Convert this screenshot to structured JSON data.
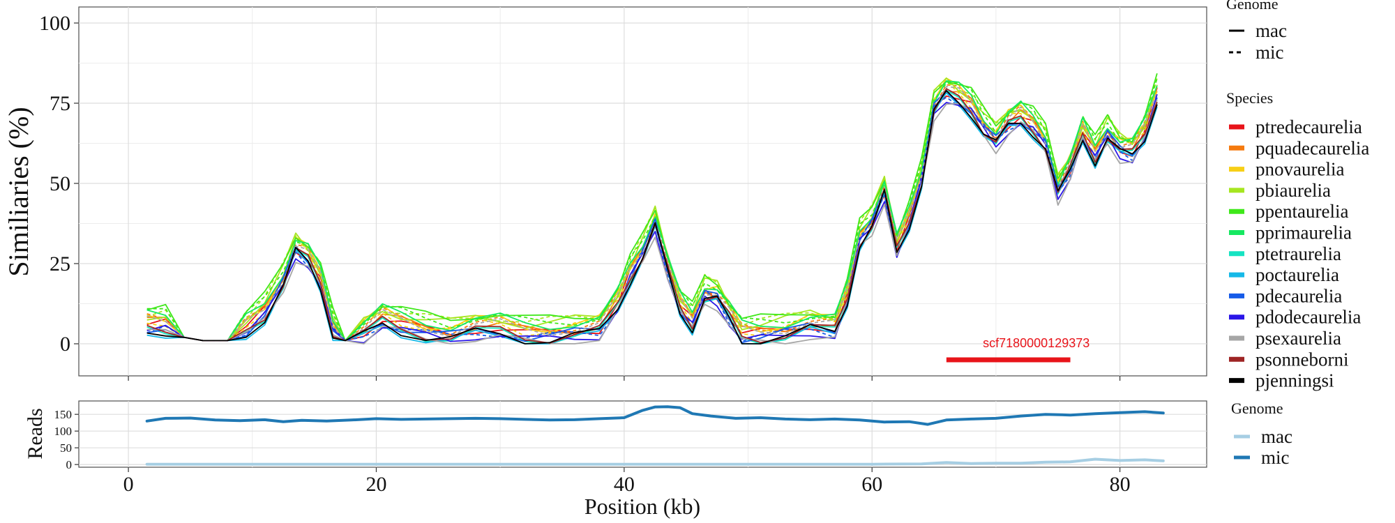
{
  "chart_data": [
    {
      "type": "line",
      "ylabel": "Similiaries (%)",
      "xlim": [
        -4,
        87
      ],
      "ylim": [
        -10,
        105
      ],
      "x_ticks": [
        0,
        20,
        40,
        60,
        80
      ],
      "y_ticks": [
        0,
        25,
        50,
        75,
        100
      ],
      "x_tick_labels": [
        "0",
        "20",
        "40",
        "60",
        "80"
      ],
      "y_tick_labels": [
        "0",
        "25",
        "50",
        "75",
        "100"
      ],
      "grid": true,
      "annotations": [
        {
          "text": "scf7180000129373",
          "x_start": 66,
          "x_end": 76,
          "y": -5,
          "color": "#e8141a"
        }
      ],
      "legends": {
        "placement": "right",
        "genome": {
          "title": "Genome",
          "entries": [
            {
              "label": "mac",
              "linestyle": "solid"
            },
            {
              "label": "mic",
              "linestyle": "dashed"
            }
          ]
        },
        "species": {
          "title": "Species",
          "entries": [
            {
              "label": "ptredecaurelia",
              "color": "#e8141a"
            },
            {
              "label": "pquadecaurelia",
              "color": "#f57a0f"
            },
            {
              "label": "pnovaurelia",
              "color": "#f7cf16"
            },
            {
              "label": "pbiaurelia",
              "color": "#a6e620"
            },
            {
              "label": "ppentaurelia",
              "color": "#3fe81a"
            },
            {
              "label": "pprimaurelia",
              "color": "#16e861"
            },
            {
              "label": "ptetraurelia",
              "color": "#16e3c2"
            },
            {
              "label": "poctaurelia",
              "color": "#16b9e8"
            },
            {
              "label": "pdecaurelia",
              "color": "#165be8"
            },
            {
              "label": "pdodecaurelia",
              "color": "#2a16e8"
            },
            {
              "label": "psexaurelia",
              "color": "#a6a6a6"
            },
            {
              "label": "psonneborni",
              "color": "#9e2424"
            },
            {
              "label": "pjenningsi",
              "color": "#000000"
            }
          ]
        }
      },
      "profile": {
        "x": [
          1.5,
          3,
          4.5,
          6,
          8,
          9.5,
          11,
          12.5,
          13.5,
          14.5,
          15.5,
          16.5,
          17.5,
          19,
          20.5,
          22,
          24,
          26,
          28,
          30,
          32,
          34,
          36,
          38,
          39.5,
          40.5,
          41.5,
          42.5,
          43.5,
          44.5,
          45.5,
          46.5,
          47.5,
          48.5,
          49.5,
          51,
          53,
          55,
          57,
          58,
          59,
          60,
          61,
          62,
          63,
          64,
          65,
          66,
          67,
          68,
          69,
          70,
          71,
          72,
          73,
          74,
          75,
          76,
          77,
          78,
          79,
          80,
          81,
          82,
          83
        ],
        "y": [
          6,
          6,
          2,
          1,
          1,
          5,
          10,
          20,
          30,
          27,
          20,
          5,
          1,
          4,
          8,
          6,
          4,
          3,
          5,
          5,
          3,
          3,
          4,
          5,
          13,
          22,
          29,
          38,
          24,
          12,
          7,
          16,
          15,
          9,
          3,
          3,
          4,
          6,
          5,
          15,
          33,
          38,
          48,
          30,
          39,
          52,
          74,
          79,
          77,
          74,
          68,
          64,
          69,
          71,
          68,
          63,
          48,
          55,
          66,
          59,
          66,
          61,
          60,
          66,
          78
        ]
      },
      "series": [
        {
          "name": "ptredecaurelia",
          "genome": "mac",
          "color": "#e8141a",
          "offset": 0
        },
        {
          "name": "pquadecaurelia",
          "genome": "mac",
          "color": "#f57a0f",
          "offset": 0.8
        },
        {
          "name": "pquadecaurelia",
          "genome": "mic",
          "color": "#f57a0f",
          "offset": 1.6
        },
        {
          "name": "pnovaurelia",
          "genome": "mac",
          "color": "#f7cf16",
          "offset": 2.3
        },
        {
          "name": "pnovaurelia",
          "genome": "mic",
          "color": "#f7cf16",
          "offset": 1.2
        },
        {
          "name": "pbiaurelia",
          "genome": "mac",
          "color": "#a6e620",
          "offset": 3.2
        },
        {
          "name": "pbiaurelia",
          "genome": "mic",
          "color": "#a6e620",
          "offset": 3.8
        },
        {
          "name": "ppentaurelia",
          "genome": "mac",
          "color": "#3fe81a",
          "offset": 4.5
        },
        {
          "name": "ppentaurelia",
          "genome": "mic",
          "color": "#3fe81a",
          "offset": 3.5
        },
        {
          "name": "pprimaurelia",
          "genome": "mac",
          "color": "#16e861",
          "offset": 2.8
        },
        {
          "name": "ptetraurelia",
          "genome": "mac",
          "color": "#16e3c2",
          "offset": -1.5
        },
        {
          "name": "poctaurelia",
          "genome": "mac",
          "color": "#16b9e8",
          "offset": -2.5
        },
        {
          "name": "pdecaurelia",
          "genome": "mac",
          "color": "#165be8",
          "offset": -0.8
        },
        {
          "name": "pdecaurelia",
          "genome": "mic",
          "color": "#165be8",
          "offset": -1.2
        },
        {
          "name": "pdodecaurelia",
          "genome": "mac",
          "color": "#2a16e8",
          "offset": -2
        },
        {
          "name": "psexaurelia",
          "genome": "mac",
          "color": "#a6a6a6",
          "offset": -3
        },
        {
          "name": "psexaurelia",
          "genome": "mic",
          "color": "#a6a6a6",
          "offset": 1
        },
        {
          "name": "psonneborni",
          "genome": "mac",
          "color": "#9e2424",
          "offset": -1
        },
        {
          "name": "pjenningsi",
          "genome": "mac",
          "color": "#000000",
          "offset": -1.8
        }
      ]
    },
    {
      "type": "line",
      "xlabel": "Position (kb)",
      "ylabel": "Reads",
      "xlim": [
        -4,
        87
      ],
      "ylim": [
        -8,
        190
      ],
      "x_ticks": [
        0,
        20,
        40,
        60,
        80
      ],
      "y_ticks": [
        0,
        50,
        100,
        150
      ],
      "x_tick_labels": [
        "0",
        "20",
        "40",
        "60",
        "80"
      ],
      "y_tick_labels": [
        "0",
        "50",
        "100",
        "150"
      ],
      "grid": true,
      "legend": {
        "title": "Genome",
        "placement": "right",
        "entries": [
          {
            "label": "mac",
            "color": "#a6cee3"
          },
          {
            "label": "mic",
            "color": "#1f78b4"
          }
        ]
      },
      "series": [
        {
          "name": "mic",
          "color": "#1f78b4",
          "x": [
            1.5,
            3,
            5,
            7,
            9,
            11,
            12.5,
            14,
            16,
            18,
            20,
            22,
            24,
            26,
            28,
            30,
            32,
            34,
            36,
            38,
            40,
            41.5,
            42.5,
            43.5,
            44.5,
            45.5,
            47,
            49,
            51,
            53,
            55,
            57,
            59,
            61,
            63,
            64.5,
            66,
            68,
            70,
            72,
            74,
            76,
            78,
            80,
            82,
            83.5
          ],
          "y": [
            130,
            138,
            139,
            133,
            131,
            134,
            128,
            132,
            130,
            133,
            137,
            135,
            136,
            137,
            138,
            137,
            135,
            133,
            134,
            137,
            140,
            162,
            172,
            173,
            170,
            152,
            145,
            138,
            140,
            136,
            134,
            136,
            133,
            127,
            128,
            120,
            133,
            136,
            138,
            145,
            150,
            148,
            152,
            155,
            158,
            154
          ]
        },
        {
          "name": "mac",
          "color": "#a6cee3",
          "x": [
            1.5,
            10,
            20,
            30,
            40,
            50,
            60,
            64,
            66,
            68,
            70,
            72,
            74,
            76,
            78,
            80,
            82,
            83.5
          ],
          "y": [
            1,
            1,
            1,
            1,
            1,
            1,
            1,
            2,
            6,
            3,
            4,
            4,
            7,
            8,
            16,
            12,
            14,
            11
          ]
        }
      ]
    }
  ]
}
